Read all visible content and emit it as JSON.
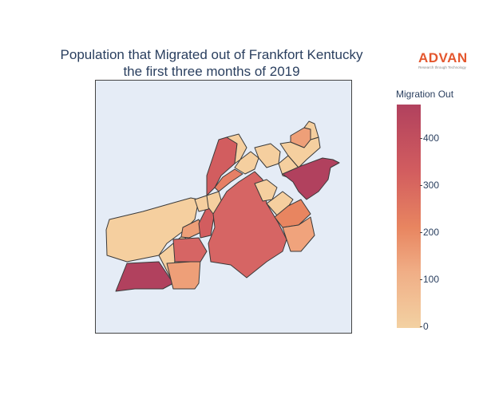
{
  "title_line1": "Population that Migrated out of Frankfort Kentucky",
  "title_line2": "the first three months of 2019",
  "logo": {
    "word": "ADVAN",
    "tagline": "Research through Technology"
  },
  "colorbar": {
    "title": "Migration Out",
    "ticks": [
      "400",
      "300",
      "200",
      "100",
      "0"
    ],
    "range": [
      0,
      475
    ],
    "colors": [
      "#f3d1a2",
      "#f0ae86",
      "#e88560",
      "#d25d5f",
      "#b1415e"
    ]
  },
  "map": {
    "background": "#e5ecf6",
    "region_border": "#3a3a3a"
  }
}
